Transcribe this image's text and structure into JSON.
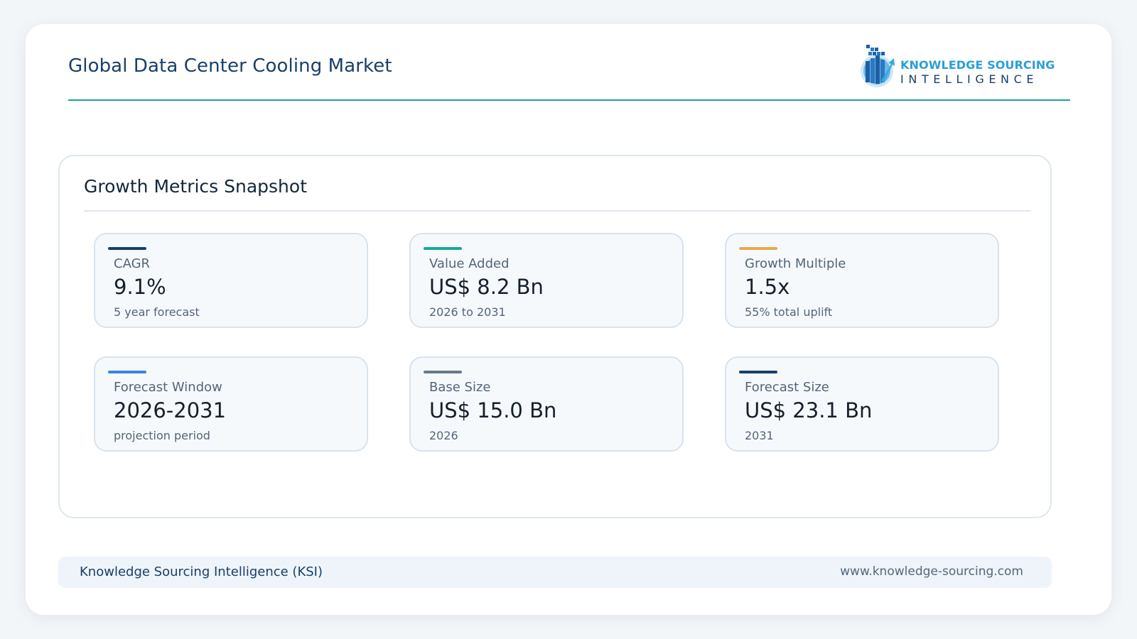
{
  "header": {
    "title": "Global Data Center Cooling Market",
    "logo": {
      "line1": "KNOWLEDGE SOURCING",
      "line2": "INTELLIGENCE",
      "icon": "ksi-logo-icon"
    }
  },
  "panel": {
    "title": "Growth Metrics Snapshot",
    "cards": [
      {
        "label": "CAGR",
        "value": "9.1%",
        "sub": "5 year forecast",
        "accent": "#17406a"
      },
      {
        "label": "Value Added",
        "value": "US$ 8.2 Bn",
        "sub": "2026 to 2031",
        "accent": "#17a6a0"
      },
      {
        "label": "Growth Multiple",
        "value": "1.5x",
        "sub": "55% total uplift",
        "accent": "#e8a94a"
      },
      {
        "label": "Forecast Window",
        "value": "2026-2031",
        "sub": "projection period",
        "accent": "#3a82e4"
      },
      {
        "label": "Base Size",
        "value": "US$ 15.0 Bn",
        "sub": "2026",
        "accent": "#687a8c"
      },
      {
        "label": "Forecast Size",
        "value": "US$ 23.1 Bn",
        "sub": "2031",
        "accent": "#17406a"
      }
    ]
  },
  "footer": {
    "left": "Knowledge Sourcing Intelligence (KSI)",
    "right": "www.knowledge-sourcing.com"
  }
}
